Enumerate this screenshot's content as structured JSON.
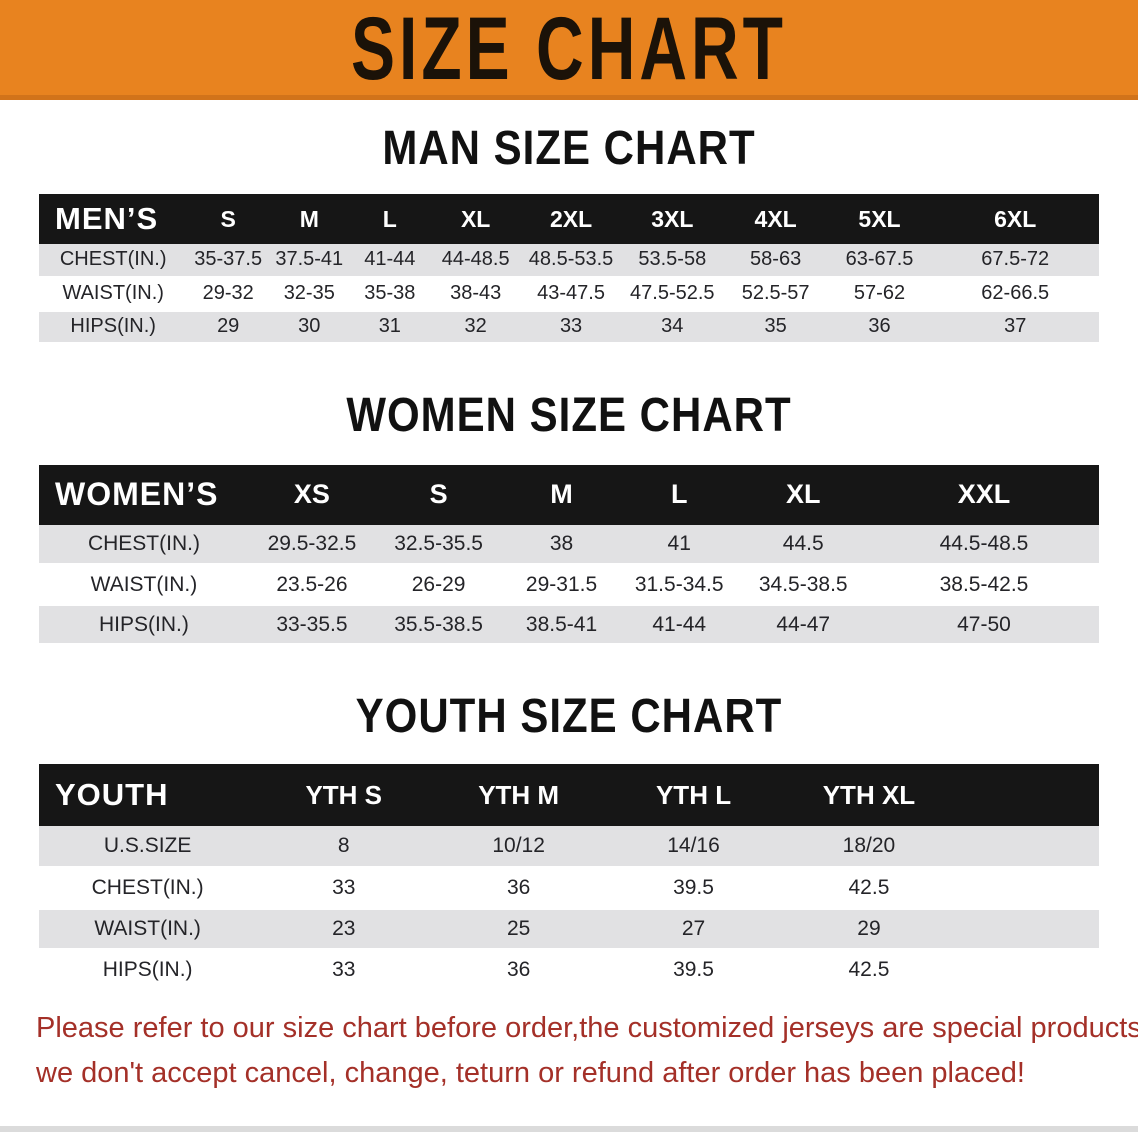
{
  "colors": {
    "banner_bg": "#E8831F",
    "banner_border": "#D1731A",
    "banner_text": "#1B1208",
    "heading_text": "#111111",
    "header_bg": "#161616",
    "row_shade": "#E1E1E3",
    "footer_text": "#A43028"
  },
  "banner": {
    "title": "SIZE CHART"
  },
  "sections": {
    "men": {
      "heading": "MAN SIZE CHART",
      "table": {
        "corner_label": "MEN’S",
        "columns": [
          "S",
          "M",
          "L",
          "XL",
          "2XL",
          "3XL",
          "4XL",
          "5XL",
          "6XL"
        ],
        "rows": [
          {
            "label": "CHEST(IN.)",
            "values": [
              "35-37.5",
              "37.5-41",
              "41-44",
              "44-48.5",
              "48.5-53.5",
              "53.5-58",
              "58-63",
              "63-67.5",
              "67.5-72"
            ]
          },
          {
            "label": "WAIST(IN.)",
            "values": [
              "29-32",
              "32-35",
              "35-38",
              "38-43",
              "43-47.5",
              "47.5-52.5",
              "52.5-57",
              "57-62",
              "62-66.5"
            ]
          },
          {
            "label": "HIPS(IN.)",
            "values": [
              "29",
              "30",
              "31",
              "32",
              "33",
              "34",
              "35",
              "36",
              "37"
            ]
          }
        ]
      }
    },
    "women": {
      "heading": "WOMEN SIZE CHART",
      "table": {
        "corner_label": "WOMEN’S",
        "columns": [
          "XS",
          "S",
          "M",
          "L",
          "XL",
          "XXL"
        ],
        "rows": [
          {
            "label": "CHEST(IN.)",
            "values": [
              "29.5-32.5",
              "32.5-35.5",
              "38",
              "41",
              "44.5",
              "44.5-48.5"
            ]
          },
          {
            "label": "WAIST(IN.)",
            "values": [
              "23.5-26",
              "26-29",
              "29-31.5",
              "31.5-34.5",
              "34.5-38.5",
              "38.5-42.5"
            ]
          },
          {
            "label": "HIPS(IN.)",
            "values": [
              "33-35.5",
              "35.5-38.5",
              "38.5-41",
              "41-44",
              "44-47",
              "47-50"
            ]
          }
        ]
      }
    },
    "youth": {
      "heading": "YOUTH SIZE CHART",
      "table": {
        "corner_label": "YOUTH",
        "columns": [
          "YTH S",
          "YTH M",
          "YTH L",
          "YTH XL"
        ],
        "rows": [
          {
            "label": "U.S.SIZE",
            "values": [
              "8",
              "10/12",
              "14/16",
              "18/20"
            ]
          },
          {
            "label": "CHEST(IN.)",
            "values": [
              "33",
              "36",
              "39.5",
              "42.5"
            ]
          },
          {
            "label": "WAIST(IN.)",
            "values": [
              "23",
              "25",
              "27",
              "29"
            ]
          },
          {
            "label": "HIPS(IN.)",
            "values": [
              "33",
              "36",
              "39.5",
              "42.5"
            ]
          }
        ]
      }
    }
  },
  "footer": {
    "line1": "Please refer to our size chart before order,the customized jerseys are special products,",
    "line2": "we don't accept cancel, change, teturn or refund after order has been placed!"
  }
}
